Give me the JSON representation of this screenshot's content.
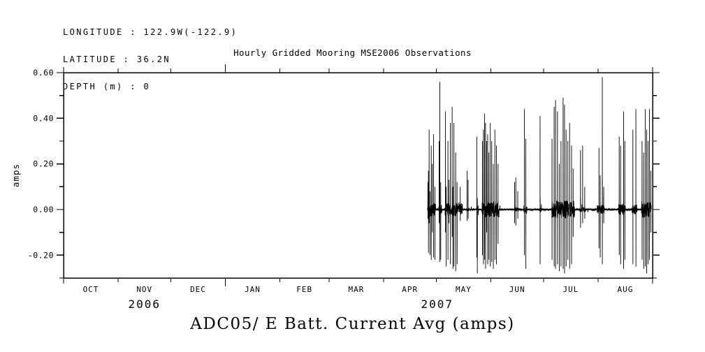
{
  "header": {
    "longitude": "LONGITUDE : 122.9W(-122.9)",
    "latitude": "LATITUDE : 36.2N",
    "depth": "DEPTH (m) : 0"
  },
  "chart_data": {
    "type": "line",
    "title": "Hourly Gridded Mooring MSE2006 Observations",
    "caption": "ADC05/ E Batt. Current Avg (amps)",
    "ylabel": "amps",
    "ylim": [
      -0.3,
      0.6
    ],
    "grid": false,
    "line_color": "#000000",
    "background": "#ffffff",
    "y_major_ticks": [
      {
        "value": 0.6,
        "label": "0.60"
      },
      {
        "value": 0.4,
        "label": "0.40"
      },
      {
        "value": 0.2,
        "label": "0.20"
      },
      {
        "value": 0.0,
        "label": "0.00"
      },
      {
        "value": -0.2,
        "label": "-0.20"
      }
    ],
    "y_minor_ticks": [
      0.5,
      0.3,
      0.1,
      -0.1,
      -0.3
    ],
    "x_axis": {
      "range_start": "2006-10-01",
      "range_end": "2007-09-01",
      "month_labels": [
        "OCT",
        "NOV",
        "DEC",
        "JAN",
        "FEB",
        "MAR",
        "APR",
        "MAY",
        "JUN",
        "JUL",
        "AUG"
      ],
      "month_boundary_days": [
        0,
        31,
        61,
        92,
        123,
        151,
        182,
        212,
        243,
        273,
        304,
        335
      ],
      "long_tick_days": [
        92
      ],
      "year_labels": [
        {
          "text": "2006",
          "day": 46
        },
        {
          "text": "2007",
          "day": 212.5
        }
      ]
    },
    "series": {
      "name": "E Batt. Current Avg",
      "units": "amps",
      "baseline": 0.0,
      "quiet_noise_amp": 0.0045,
      "data_start_day": 207.0,
      "data_end_day": 334.3,
      "active_ranges": [
        [
          207.0,
          211.6,
          0.03
        ],
        [
          213.4,
          215.2,
          0.02
        ],
        [
          217.0,
          227.0,
          0.03
        ],
        [
          229.3,
          230.6,
          0.008
        ],
        [
          234.8,
          235.8,
          0.012
        ],
        [
          238.0,
          247.6,
          0.035
        ],
        [
          256.2,
          258.8,
          0.008
        ],
        [
          261.8,
          263.5,
          0.02
        ],
        [
          270.8,
          271.5,
          0.012
        ],
        [
          277.6,
          290.6,
          0.04
        ],
        [
          293.7,
          297.0,
          0.01
        ],
        [
          303.2,
          307.5,
          0.02
        ],
        [
          315.7,
          319.6,
          0.025
        ],
        [
          323.4,
          326.2,
          0.02
        ],
        [
          328.6,
          334.3,
          0.035
        ]
      ],
      "spikes": [
        [
          207.2,
          0.12,
          -0.04
        ],
        [
          207.5,
          0.17,
          -0.19
        ],
        [
          207.9,
          0.35,
          -0.06
        ],
        [
          208.4,
          0.08,
          -0.2
        ],
        [
          209.1,
          0.28,
          -0.22
        ],
        [
          209.7,
          0.2,
          -0.1
        ],
        [
          210.4,
          0.33,
          -0.21
        ],
        [
          211.2,
          0.1,
          -0.22
        ],
        [
          213.6,
          0.3,
          -0.06
        ],
        [
          214.0,
          0.56,
          -0.23
        ],
        [
          214.5,
          0.12,
          -0.22
        ],
        [
          217.2,
          0.43,
          -0.1
        ],
        [
          217.6,
          0.1,
          -0.25
        ],
        [
          218.6,
          0.3,
          -0.22
        ],
        [
          219.2,
          0.13,
          -0.06
        ],
        [
          220.0,
          0.38,
          -0.24
        ],
        [
          221.0,
          0.45,
          -0.12
        ],
        [
          221.4,
          0.1,
          -0.26
        ],
        [
          222.0,
          0.38,
          -0.25
        ],
        [
          223.0,
          0.25,
          -0.27
        ],
        [
          223.8,
          0.12,
          -0.24
        ],
        [
          225.6,
          0.1,
          -0.05
        ],
        [
          229.5,
          0.17,
          -0.05
        ],
        [
          230.1,
          0.13,
          -0.04
        ],
        [
          235.0,
          0.32,
          -0.21,
          0.04
        ],
        [
          235.3,
          0.05,
          -0.28
        ],
        [
          238.2,
          0.3,
          -0.2
        ],
        [
          238.8,
          0.35,
          -0.24
        ],
        [
          239.4,
          0.42,
          -0.22
        ],
        [
          240.0,
          0.38,
          -0.26
        ],
        [
          240.6,
          0.3,
          -0.1
        ],
        [
          241.2,
          0.33,
          -0.24
        ],
        [
          241.9,
          0.25,
          -0.22
        ],
        [
          242.7,
          0.38,
          -0.25
        ],
        [
          243.5,
          0.3,
          -0.23
        ],
        [
          244.4,
          0.2,
          -0.26
        ],
        [
          245.3,
          0.35,
          -0.22
        ],
        [
          246.2,
          0.28,
          -0.24
        ],
        [
          247.1,
          0.2,
          -0.15
        ],
        [
          256.5,
          0.12,
          -0.06
        ],
        [
          257.2,
          0.14,
          -0.07
        ],
        [
          258.3,
          0.08,
          -0.04
        ],
        [
          262.1,
          0.44,
          -0.2
        ],
        [
          262.9,
          0.31,
          -0.26
        ],
        [
          271.0,
          0.41,
          -0.24,
          0.05
        ],
        [
          277.8,
          0.31,
          -0.22
        ],
        [
          279.0,
          0.45,
          -0.25
        ],
        [
          279.8,
          0.48,
          -0.26
        ],
        [
          280.9,
          0.43,
          -0.24
        ],
        [
          281.9,
          0.2,
          -0.27
        ],
        [
          282.9,
          0.3,
          -0.25
        ],
        [
          284.1,
          0.49,
          -0.26
        ],
        [
          284.9,
          0.46,
          -0.28
        ],
        [
          285.8,
          0.35,
          -0.25
        ],
        [
          286.8,
          0.3,
          -0.22
        ],
        [
          287.8,
          0.38,
          -0.26
        ],
        [
          288.9,
          0.28,
          -0.24
        ],
        [
          289.8,
          0.18,
          -0.12
        ],
        [
          294.0,
          0.26,
          -0.08,
          0.05
        ],
        [
          295.2,
          0.28,
          -0.06
        ],
        [
          296.4,
          0.1,
          -0.04
        ],
        [
          304.5,
          0.27,
          -0.17
        ],
        [
          305.2,
          0.15,
          -0.21
        ],
        [
          306.4,
          0.58,
          -0.24,
          0.13
        ],
        [
          307.2,
          0.1,
          -0.06
        ],
        [
          316.0,
          0.32,
          -0.2
        ],
        [
          316.8,
          0.28,
          -0.24
        ],
        [
          318.5,
          0.43,
          -0.26
        ],
        [
          319.2,
          0.3,
          -0.22
        ],
        [
          323.8,
          0.35,
          -0.24
        ],
        [
          325.5,
          0.44,
          -0.25
        ],
        [
          329.0,
          0.3,
          -0.22
        ],
        [
          329.9,
          0.25,
          -0.26
        ],
        [
          330.8,
          0.44,
          -0.25
        ],
        [
          331.6,
          0.35,
          -0.28
        ],
        [
          332.4,
          0.3,
          -0.24
        ],
        [
          333.2,
          0.44,
          -0.22
        ],
        [
          334.0,
          0.17,
          -0.1
        ]
      ]
    }
  }
}
